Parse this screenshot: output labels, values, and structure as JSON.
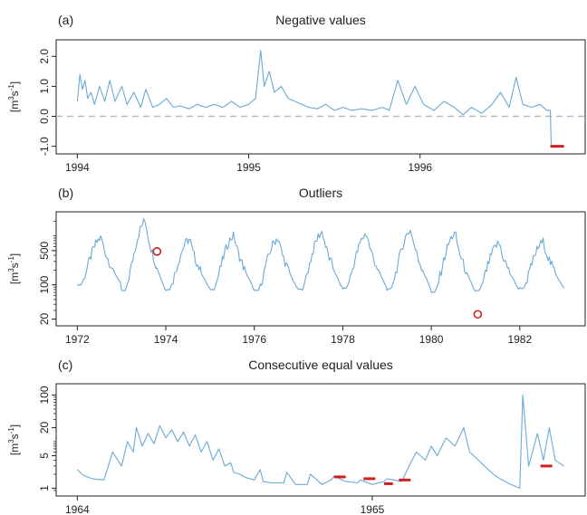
{
  "chart_data": [
    {
      "panel": "(a)",
      "type": "line",
      "title": "Negative values",
      "ylabel": "[m³s⁻¹]",
      "ylabel_parts": [
        "[m",
        "3",
        "s",
        "-1",
        "]"
      ],
      "yscale": "linear",
      "ylim": [
        -1.1,
        2.4
      ],
      "xlim": [
        1994.0,
        1996.84
      ],
      "xticks": [
        1994,
        1995,
        1996
      ],
      "xtick_labels": [
        "1994",
        "1995",
        "1996"
      ],
      "yticks": [
        -1.0,
        0.0,
        1.0,
        2.0
      ],
      "ytick_labels": [
        "-1.0",
        "0.0",
        "1.0",
        "2.0"
      ],
      "reference_line": {
        "y": 0.0,
        "style": "dashed"
      },
      "series": [
        {
          "x": [
            1994.0,
            1994.015,
            1994.03,
            1994.045,
            1994.06,
            1994.08,
            1994.1,
            1994.13,
            1994.16,
            1994.19,
            1994.22,
            1994.26,
            1994.29,
            1994.33,
            1994.37,
            1994.4,
            1994.44,
            1994.48,
            1994.52,
            1994.56,
            1994.6,
            1994.65,
            1994.7,
            1994.75,
            1994.8,
            1994.85,
            1994.9,
            1994.95,
            1995.0,
            1995.04,
            1995.07,
            1995.09,
            1995.12,
            1995.15,
            1995.19,
            1995.23,
            1995.27,
            1995.31,
            1995.35,
            1995.4,
            1995.45,
            1995.5,
            1995.55,
            1995.6,
            1995.66,
            1995.72,
            1995.78,
            1995.82,
            1995.87,
            1995.92,
            1995.97,
            1996.02,
            1996.08,
            1996.14,
            1996.2,
            1996.25,
            1996.3,
            1996.36,
            1996.42,
            1996.47,
            1996.52,
            1996.56,
            1996.6,
            1996.65,
            1996.7,
            1996.74,
            1996.76,
            1996.765,
            1996.84
          ],
          "y": [
            0.5,
            1.4,
            0.9,
            1.2,
            0.6,
            0.8,
            0.4,
            1.0,
            0.5,
            1.2,
            0.5,
            1.0,
            0.4,
            0.8,
            0.3,
            0.9,
            0.3,
            0.4,
            0.6,
            0.3,
            0.35,
            0.25,
            0.4,
            0.3,
            0.4,
            0.3,
            0.5,
            0.3,
            0.4,
            0.6,
            2.2,
            1.0,
            1.5,
            0.8,
            1.0,
            0.6,
            0.5,
            0.4,
            0.3,
            0.25,
            0.4,
            0.2,
            0.3,
            0.2,
            0.25,
            0.2,
            0.3,
            0.2,
            1.2,
            0.4,
            1.0,
            0.4,
            0.2,
            0.5,
            0.3,
            0.05,
            0.3,
            0.1,
            0.4,
            0.8,
            0.3,
            1.3,
            0.4,
            0.3,
            0.4,
            0.2,
            0.2,
            -1.0,
            -1.0
          ]
        }
      ],
      "flagged": [
        {
          "kind": "segment",
          "x": [
            1996.76,
            1996.84
          ],
          "y": -1.0
        }
      ]
    },
    {
      "panel": "(b)",
      "type": "line",
      "title": "Outliers",
      "ylabel": "[m³s⁻¹]",
      "ylabel_parts": [
        "[m",
        "3",
        "s",
        "-1",
        "]"
      ],
      "yscale": "log",
      "ylim": [
        18,
        2500
      ],
      "xlim": [
        1972.0,
        1983.0
      ],
      "xticks": [
        1972,
        1974,
        1976,
        1978,
        1980,
        1982
      ],
      "xtick_labels": [
        "1972",
        "1974",
        "1976",
        "1978",
        "1980",
        "1982"
      ],
      "yticks": [
        20,
        100,
        500
      ],
      "ytick_labels": [
        "20",
        "100",
        "500"
      ],
      "cycles": {
        "start": 1972.0,
        "end": 1983.0,
        "peaks": [
          900,
          2000,
          850,
          1000,
          900,
          1200,
          1100,
          1300,
          1100,
          700,
          750
        ],
        "troughs": [
          100,
          75,
          80,
          80,
          75,
          80,
          85,
          80,
          70,
          75,
          85
        ]
      },
      "flagged": [
        {
          "kind": "point",
          "x": 1973.8,
          "y": 480
        },
        {
          "kind": "point",
          "x": 1981.05,
          "y": 25
        }
      ]
    },
    {
      "panel": "(c)",
      "type": "line",
      "title": "Consecutive equal values",
      "ylabel": "[m³s⁻¹]",
      "ylabel_parts": [
        "[m",
        "3",
        "s",
        "-1",
        "]"
      ],
      "yscale": "log",
      "ylim": [
        0.85,
        140
      ],
      "xlim": [
        1964.0,
        1965.65
      ],
      "xticks": [
        1964,
        1965
      ],
      "xtick_labels": [
        "1964",
        "1965"
      ],
      "yticks": [
        1,
        5,
        20,
        100
      ],
      "ytick_labels": [
        "1",
        "5",
        "20",
        "100"
      ],
      "series": [
        {
          "x": [
            1964.0,
            1964.02,
            1964.05,
            1964.09,
            1964.12,
            1964.15,
            1964.17,
            1964.19,
            1964.2,
            1964.22,
            1964.24,
            1964.26,
            1964.28,
            1964.3,
            1964.32,
            1964.34,
            1964.36,
            1964.38,
            1964.4,
            1964.42,
            1964.44,
            1964.46,
            1964.48,
            1964.5,
            1964.52,
            1964.53,
            1964.55,
            1964.57,
            1964.6,
            1964.62,
            1964.63,
            1964.66,
            1964.7,
            1964.71,
            1964.74,
            1964.78,
            1964.79,
            1964.83,
            1964.86,
            1964.87,
            1964.91,
            1964.95,
            1964.96,
            1965.0,
            1965.04,
            1965.05,
            1965.1,
            1965.13,
            1965.15,
            1965.18,
            1965.2,
            1965.22,
            1965.25,
            1965.28,
            1965.31,
            1965.33,
            1965.36,
            1965.38,
            1965.41,
            1965.44,
            1965.47,
            1965.5,
            1965.51,
            1965.53,
            1965.54,
            1965.56,
            1965.58,
            1965.6,
            1965.62,
            1965.65
          ],
          "y": [
            2.5,
            1.9,
            1.6,
            1.5,
            6,
            3,
            10,
            6,
            20,
            8,
            15,
            9,
            22,
            12,
            18,
            10,
            16,
            8,
            14,
            6,
            10,
            4,
            7,
            3,
            3.5,
            2.2,
            2.0,
            1.7,
            1.5,
            2.5,
            1.4,
            1.3,
            1.3,
            2.2,
            1.2,
            1.2,
            2.0,
            1.2,
            1.5,
            1.8,
            1.4,
            1.3,
            1.5,
            1.2,
            1.4,
            1.6,
            1.4,
            3.5,
            6,
            4,
            8,
            5,
            12,
            8,
            20,
            6,
            4,
            3,
            2,
            1.5,
            1.2,
            1.0,
            100,
            3,
            5,
            15,
            4,
            20,
            4,
            3
          ]
        }
      ],
      "flagged": [
        {
          "kind": "segment",
          "x": [
            1964.87,
            1964.91
          ],
          "y": 1.75
        },
        {
          "kind": "segment",
          "x": [
            1964.97,
            1965.01
          ],
          "y": 1.6
        },
        {
          "kind": "segment",
          "x": [
            1965.04,
            1965.07
          ],
          "y": 1.25
        },
        {
          "kind": "segment",
          "x": [
            1965.09,
            1965.13
          ],
          "y": 1.5
        },
        {
          "kind": "segment",
          "x": [
            1965.57,
            1965.61
          ],
          "y": 3.0
        }
      ]
    }
  ],
  "colors": {
    "series": "#6aaad6",
    "flag": "#d11f1f",
    "zero_line": "#bbbbbb",
    "axis": "#222222"
  }
}
